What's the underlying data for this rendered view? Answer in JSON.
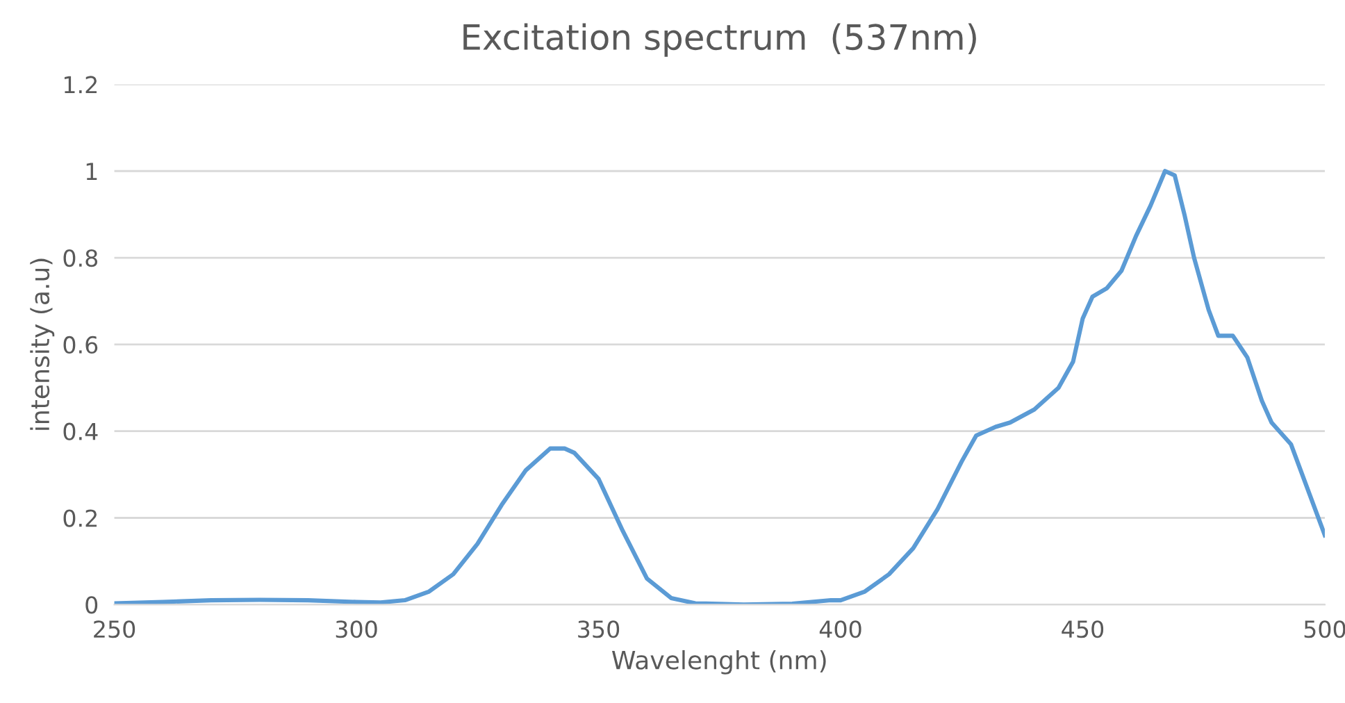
{
  "chart_data": {
    "type": "line",
    "title": "Excitation spectrum  (537nm)",
    "xlabel": "Wavelenght (nm)",
    "ylabel": "intensity (a.u)",
    "xlim": [
      250,
      500
    ],
    "xticks": [
      250,
      300,
      350,
      400,
      450,
      500
    ],
    "ylim": [
      0,
      1.2
    ],
    "yticks": [
      0,
      0.2,
      0.4,
      0.6,
      0.8,
      1,
      1.2
    ],
    "grid": "y",
    "legend": false,
    "marker": "none",
    "line_style": "solid",
    "series": [
      {
        "color": "#5b9bd5",
        "x": [
          250,
          260,
          270,
          280,
          290,
          300,
          305,
          310,
          315,
          320,
          325,
          330,
          335,
          340,
          343,
          345,
          350,
          355,
          360,
          365,
          370,
          380,
          390,
          398,
          400,
          405,
          410,
          415,
          420,
          425,
          428,
          432,
          435,
          440,
          445,
          448,
          450,
          452,
          455,
          458,
          461,
          464,
          467,
          469,
          471,
          473,
          476,
          478,
          481,
          484,
          487,
          489,
          493,
          496,
          500
        ],
        "values": [
          0.003,
          0.006,
          0.01,
          0.011,
          0.01,
          0.006,
          0.005,
          0.01,
          0.03,
          0.07,
          0.14,
          0.23,
          0.31,
          0.36,
          0.36,
          0.35,
          0.29,
          0.17,
          0.06,
          0.015,
          0.003,
          0.0,
          0.002,
          0.01,
          0.01,
          0.03,
          0.07,
          0.13,
          0.22,
          0.33,
          0.39,
          0.41,
          0.42,
          0.45,
          0.5,
          0.56,
          0.66,
          0.71,
          0.73,
          0.77,
          0.85,
          0.92,
          1.0,
          0.99,
          0.9,
          0.8,
          0.68,
          0.62,
          0.62,
          0.57,
          0.47,
          0.42,
          0.37,
          0.28,
          0.16
        ]
      }
    ]
  }
}
